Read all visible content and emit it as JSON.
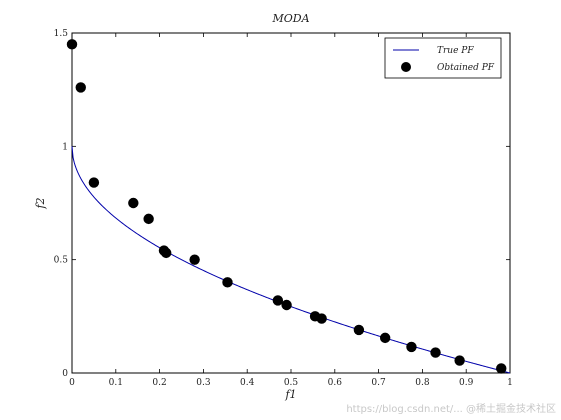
{
  "chart_data": {
    "type": "scatter",
    "title": "MODA",
    "xlabel": "f1",
    "ylabel": "f2",
    "xlim": [
      0,
      1
    ],
    "ylim": [
      0,
      1.5
    ],
    "xticks": [
      "0",
      "0.1",
      "0.2",
      "0.3",
      "0.4",
      "0.5",
      "0.6",
      "0.7",
      "0.8",
      "0.9",
      "1"
    ],
    "yticks": [
      "0",
      "0.5",
      "1",
      "1.5"
    ],
    "legend_position": "top-right",
    "grid": false,
    "series": [
      {
        "name": "True PF",
        "type": "line",
        "function": "1 - sqrt(f1)",
        "color": "#0000aa"
      },
      {
        "name": "Obtained PF",
        "type": "scatter",
        "color": "#000000",
        "x": [
          0.0,
          0.02,
          0.05,
          0.14,
          0.175,
          0.21,
          0.215,
          0.28,
          0.355,
          0.47,
          0.49,
          0.555,
          0.57,
          0.655,
          0.715,
          0.775,
          0.83,
          0.885,
          0.98
        ],
        "y": [
          1.45,
          1.26,
          0.84,
          0.75,
          0.68,
          0.54,
          0.53,
          0.5,
          0.4,
          0.32,
          0.3,
          0.25,
          0.24,
          0.19,
          0.155,
          0.115,
          0.09,
          0.055,
          0.02
        ]
      }
    ]
  },
  "watermark": {
    "url_text": "https://blog.csdn.net/... @稀土掘金技术社区"
  }
}
